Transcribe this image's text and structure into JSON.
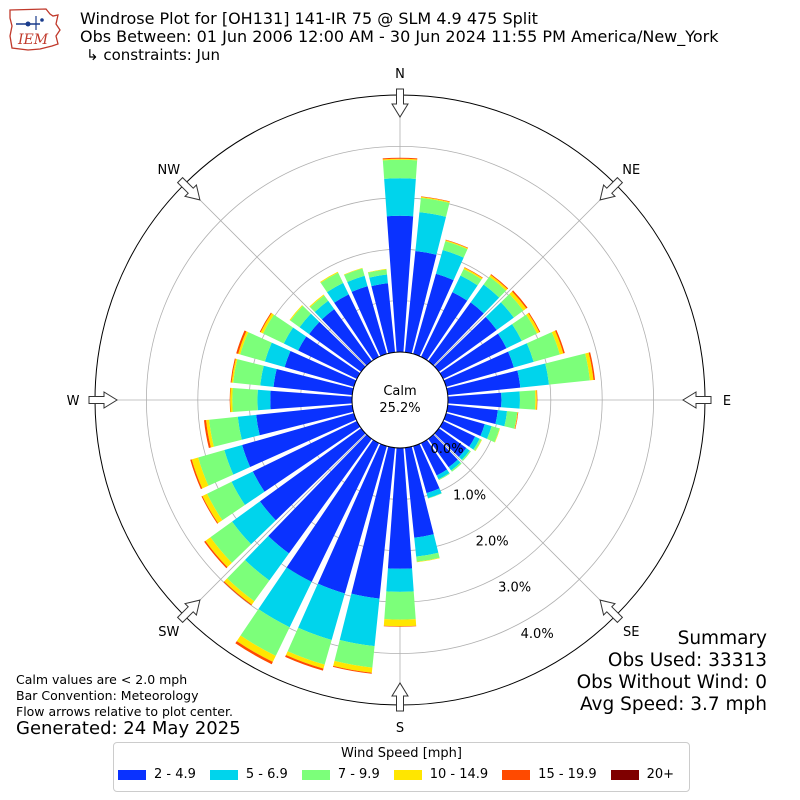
{
  "header": {
    "title": "Windrose Plot for [OH131] 141-IR 75 @ SLM 4.9 475 Split",
    "obs_between": "Obs Between: 01 Jun 2006 12:00 AM - 30 Jun 2024 11:55 PM America/New_York",
    "constraints": "↳ constraints: Jun",
    "logo_text": "IEM"
  },
  "notes": {
    "calm_def": "Calm values are < 2.0 mph",
    "convention": "Bar Convention: Meteorology",
    "flow": "Flow arrows relative to plot center.",
    "generated": "Generated: 24 May 2025"
  },
  "summary": {
    "title": "Summary",
    "obs_used": "Obs Used: 33313",
    "obs_without_wind": "Obs Without Wind: 0",
    "avg_speed": "Avg Speed: 3.7 mph"
  },
  "chart_data": {
    "type": "windrose",
    "title": "Windrose Plot for [OH131] 141-IR 75 @ SLM 4.9 475 Split",
    "calm": {
      "label": "Calm",
      "value_text": "25.2%",
      "value": 25.2
    },
    "radial_ticks": [
      "0.0%",
      "1.0%",
      "2.0%",
      "3.0%",
      "4.0%"
    ],
    "radial_tick_values": [
      0,
      1,
      2,
      3,
      4
    ],
    "radial_max": 5.0,
    "grid": true,
    "directions": [
      "N",
      "NE",
      "E",
      "SE",
      "S",
      "SW",
      "W",
      "NW"
    ],
    "direction_angles_deg": [
      0,
      10,
      20,
      30,
      40,
      50,
      60,
      70,
      80,
      90,
      100,
      110,
      120,
      130,
      140,
      150,
      160,
      170,
      180,
      190,
      200,
      210,
      220,
      230,
      240,
      250,
      260,
      270,
      280,
      290,
      300,
      310,
      320,
      330,
      340,
      350
    ],
    "speed_bins": [
      {
        "label": "2 - 4.9",
        "color": "#0a32ff"
      },
      {
        "label": "5 - 6.9",
        "color": "#00d4ec"
      },
      {
        "label": "7 - 9.9",
        "color": "#7cff7a"
      },
      {
        "label": "10 - 14.9",
        "color": "#ffe600"
      },
      {
        "label": "15 - 19.9",
        "color": "#ff4a00"
      },
      {
        "label": "20+",
        "color": "#7f0000"
      }
    ],
    "legend_title": "Wind Speed [mph]",
    "legend_placement": "bottom-center",
    "cumulative_percent": [
      [
        2.65,
        3.38,
        3.74,
        3.76,
        3.78,
        3.78
      ],
      [
        1.98,
        2.74,
        3.02,
        3.04,
        3.05,
        3.05
      ],
      [
        1.62,
        2.1,
        2.28,
        2.3,
        2.31,
        2.31
      ],
      [
        1.4,
        1.76,
        1.9,
        1.93,
        1.94,
        1.94
      ],
      [
        1.41,
        1.84,
        2.03,
        2.07,
        2.09,
        2.09
      ],
      [
        1.39,
        1.8,
        2.03,
        2.1,
        2.13,
        2.13
      ],
      [
        1.37,
        1.7,
        2.03,
        2.08,
        2.1,
        2.1
      ],
      [
        1.37,
        1.77,
        2.3,
        2.37,
        2.4,
        2.4
      ],
      [
        1.42,
        1.98,
        2.78,
        2.85,
        2.88,
        2.88
      ],
      [
        1.04,
        1.4,
        1.7,
        1.73,
        1.74,
        1.74
      ],
      [
        0.98,
        1.16,
        1.36,
        1.37,
        1.38,
        1.38
      ],
      [
        0.78,
        0.92,
        1.08,
        1.09,
        1.09,
        1.09
      ],
      [
        0.69,
        0.79,
        0.83,
        0.84,
        0.84,
        0.84
      ],
      [
        0.66,
        0.74,
        0.77,
        0.77,
        0.77,
        0.77
      ],
      [
        0.68,
        0.76,
        0.79,
        0.79,
        0.79,
        0.79
      ],
      [
        0.7,
        0.78,
        0.8,
        0.8,
        0.8,
        0.8
      ],
      [
        0.95,
        1.05,
        1.06,
        1.06,
        1.06,
        1.06
      ],
      [
        1.76,
        2.13,
        2.23,
        2.24,
        2.24,
        2.24
      ],
      [
        2.35,
        2.8,
        3.34,
        3.47,
        3.48,
        3.48
      ],
      [
        2.95,
        3.88,
        4.3,
        4.4,
        4.42,
        4.42
      ],
      [
        2.98,
        3.92,
        4.42,
        4.5,
        4.54,
        4.54
      ],
      [
        3.0,
        3.98,
        4.6,
        4.73,
        4.78,
        4.78
      ],
      [
        2.75,
        3.4,
        3.9,
        3.98,
        4.0,
        4.0
      ],
      [
        2.43,
        3.1,
        3.62,
        3.74,
        3.77,
        3.77
      ],
      [
        2.25,
        2.71,
        3.24,
        3.34,
        3.36,
        3.36
      ],
      [
        2.26,
        2.62,
        3.15,
        3.28,
        3.31,
        3.31
      ],
      [
        1.88,
        2.24,
        2.8,
        2.86,
        2.9,
        2.9
      ],
      [
        1.59,
        1.84,
        2.33,
        2.37,
        2.38,
        2.38
      ],
      [
        1.54,
        1.8,
        2.33,
        2.36,
        2.38,
        2.38
      ],
      [
        1.4,
        1.8,
        2.3,
        2.34,
        2.38,
        2.38
      ],
      [
        1.27,
        1.58,
        2.03,
        2.08,
        2.1,
        2.1
      ],
      [
        1.25,
        1.48,
        1.7,
        1.72,
        1.72,
        1.72
      ],
      [
        1.25,
        1.45,
        1.58,
        1.6,
        1.6,
        1.6
      ],
      [
        1.35,
        1.6,
        1.82,
        1.84,
        1.84,
        1.84
      ],
      [
        1.37,
        1.58,
        1.73,
        1.74,
        1.74,
        1.74
      ],
      [
        1.35,
        1.52,
        1.62,
        1.63,
        1.63,
        1.63
      ]
    ]
  }
}
